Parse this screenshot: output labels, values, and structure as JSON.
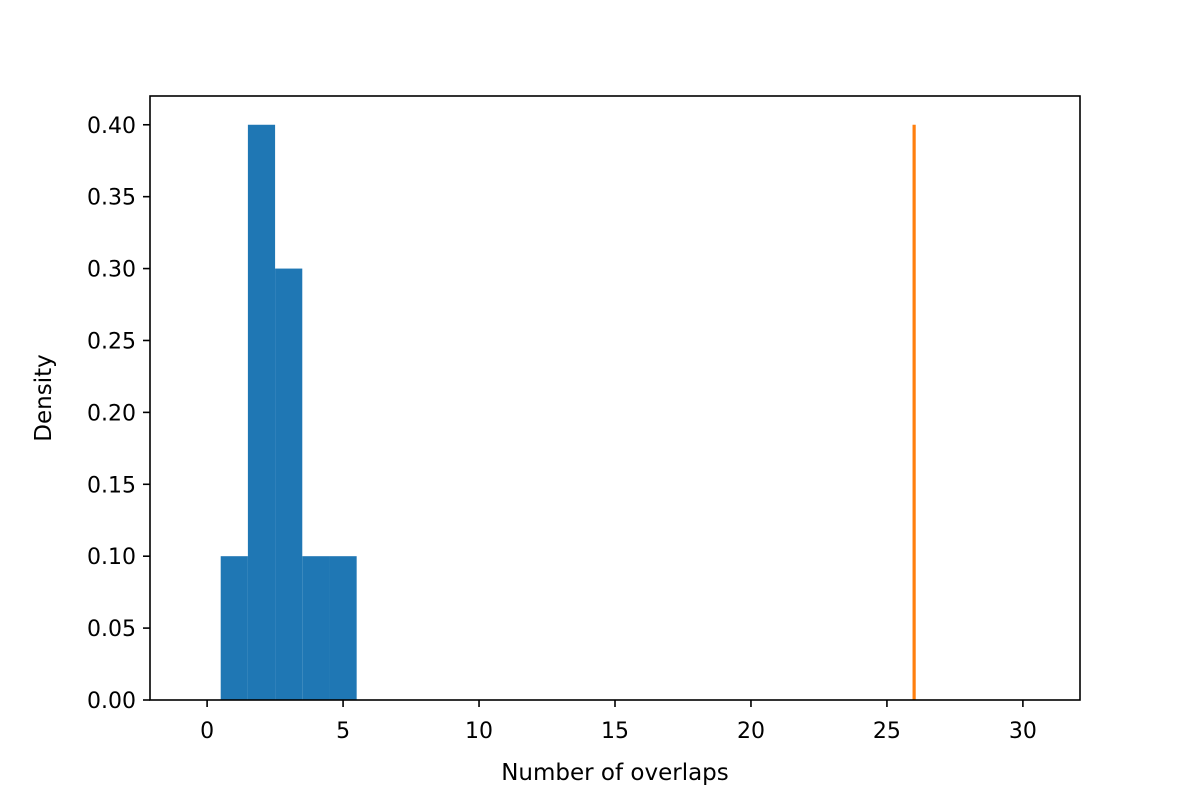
{
  "chart_data": {
    "type": "bar",
    "title": "",
    "xlabel": "Number of overlaps",
    "ylabel": "Density",
    "xlim": [
      -2.1,
      32.1
    ],
    "ylim": [
      0,
      0.42
    ],
    "grid": false,
    "legend": "none",
    "x_ticks": [
      0,
      5,
      10,
      15,
      20,
      25,
      30
    ],
    "y_ticks": [
      0.0,
      0.05,
      0.1,
      0.15,
      0.2,
      0.25,
      0.3,
      0.35,
      0.4
    ],
    "x_tick_labels": [
      "0",
      "5",
      "10",
      "15",
      "20",
      "25",
      "30"
    ],
    "y_tick_labels": [
      "0.00",
      "0.05",
      "0.10",
      "0.15",
      "0.20",
      "0.25",
      "0.30",
      "0.35",
      "0.40"
    ],
    "histogram": {
      "color": "#1f77b4",
      "bins": [
        {
          "x0": 0.5,
          "x1": 1.5,
          "density": 0.1
        },
        {
          "x0": 1.5,
          "x1": 2.5,
          "density": 0.4
        },
        {
          "x0": 2.5,
          "x1": 3.5,
          "density": 0.3
        },
        {
          "x0": 3.5,
          "x1": 4.5,
          "density": 0.1
        },
        {
          "x0": 4.5,
          "x1": 5.5,
          "density": 0.1
        }
      ]
    },
    "reference_line": {
      "color": "#ff7f0e",
      "x": 26,
      "y0": 0,
      "y1": 0.4
    }
  }
}
